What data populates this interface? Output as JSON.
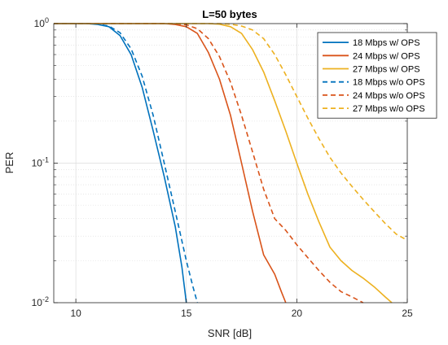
{
  "chart_data": {
    "type": "line",
    "title": "L=50 bytes",
    "xlabel": "SNR [dB]",
    "ylabel": "PER",
    "xlim": [
      9,
      25
    ],
    "ylim": [
      0.01,
      1
    ],
    "yscale": "log",
    "grid": true,
    "minor_grid": true,
    "legend_position": "top-right",
    "x_ticks": [
      10,
      15,
      20,
      25
    ],
    "x_tick_labels": [
      "10",
      "15",
      "20",
      "25"
    ],
    "y_ticks": [
      0.01,
      0.1,
      1
    ],
    "y_tick_labels": [
      {
        "base": "10",
        "exp": "-2"
      },
      {
        "base": "10",
        "exp": "-1"
      },
      {
        "base": "10",
        "exp": "0"
      }
    ],
    "series": [
      {
        "name": "18 Mbps w/ OPS",
        "color": "#0072BD",
        "dash": "solid",
        "points": [
          [
            9,
            1
          ],
          [
            10.5,
            1
          ],
          [
            11,
            0.985
          ],
          [
            11.5,
            0.95
          ],
          [
            12,
            0.82
          ],
          [
            12.5,
            0.6
          ],
          [
            13,
            0.35
          ],
          [
            13.5,
            0.17
          ],
          [
            14,
            0.08
          ],
          [
            14.5,
            0.035
          ],
          [
            14.8,
            0.018
          ],
          [
            15,
            0.01
          ]
        ]
      },
      {
        "name": "24 Mbps w/ OPS",
        "color": "#D95319",
        "dash": "solid",
        "points": [
          [
            9,
            1
          ],
          [
            14,
            1
          ],
          [
            14.5,
            0.985
          ],
          [
            15,
            0.95
          ],
          [
            15.5,
            0.85
          ],
          [
            16,
            0.62
          ],
          [
            16.5,
            0.4
          ],
          [
            17,
            0.22
          ],
          [
            17.5,
            0.1
          ],
          [
            18,
            0.045
          ],
          [
            18.5,
            0.022
          ],
          [
            19,
            0.016
          ],
          [
            19.3,
            0.012
          ],
          [
            19.5,
            0.01
          ]
        ]
      },
      {
        "name": "27 Mbps w/ OPS",
        "color": "#EDB120",
        "dash": "solid",
        "points": [
          [
            9,
            1
          ],
          [
            16,
            1
          ],
          [
            16.5,
            0.99
          ],
          [
            17,
            0.95
          ],
          [
            17.5,
            0.85
          ],
          [
            18,
            0.65
          ],
          [
            18.5,
            0.45
          ],
          [
            19,
            0.28
          ],
          [
            19.5,
            0.17
          ],
          [
            20,
            0.1
          ],
          [
            20.5,
            0.06
          ],
          [
            21,
            0.038
          ],
          [
            21.5,
            0.025
          ],
          [
            22,
            0.02
          ],
          [
            22.5,
            0.017
          ],
          [
            23,
            0.015
          ],
          [
            23.5,
            0.013
          ],
          [
            24,
            0.011
          ],
          [
            24.3,
            0.01
          ]
        ]
      },
      {
        "name": "18 Mbps w/o OPS",
        "color": "#0072BD",
        "dash": "dashed",
        "points": [
          [
            9,
            1
          ],
          [
            10.5,
            1
          ],
          [
            11,
            0.99
          ],
          [
            11.5,
            0.96
          ],
          [
            12,
            0.86
          ],
          [
            12.5,
            0.66
          ],
          [
            13,
            0.42
          ],
          [
            13.5,
            0.22
          ],
          [
            14,
            0.1
          ],
          [
            14.5,
            0.045
          ],
          [
            15,
            0.02
          ],
          [
            15.3,
            0.013
          ],
          [
            15.5,
            0.01
          ]
        ]
      },
      {
        "name": "24 Mbps w/o OPS",
        "color": "#D95319",
        "dash": "dashed",
        "points": [
          [
            9,
            1
          ],
          [
            14.5,
            1
          ],
          [
            15,
            0.98
          ],
          [
            15.5,
            0.92
          ],
          [
            16,
            0.78
          ],
          [
            16.5,
            0.58
          ],
          [
            17,
            0.38
          ],
          [
            17.5,
            0.22
          ],
          [
            18,
            0.12
          ],
          [
            18.5,
            0.065
          ],
          [
            19,
            0.04
          ],
          [
            19.5,
            0.033
          ],
          [
            20,
            0.026
          ],
          [
            20.5,
            0.021
          ],
          [
            21,
            0.017
          ],
          [
            21.5,
            0.014
          ],
          [
            22,
            0.012
          ],
          [
            22.5,
            0.011
          ],
          [
            23,
            0.01
          ]
        ]
      },
      {
        "name": "27 Mbps w/o OPS",
        "color": "#EDB120",
        "dash": "dashed",
        "points": [
          [
            9,
            1
          ],
          [
            16.5,
            1
          ],
          [
            17,
            0.99
          ],
          [
            17.5,
            0.96
          ],
          [
            18,
            0.9
          ],
          [
            18.5,
            0.78
          ],
          [
            19,
            0.6
          ],
          [
            19.5,
            0.43
          ],
          [
            20,
            0.3
          ],
          [
            20.5,
            0.21
          ],
          [
            21,
            0.15
          ],
          [
            21.5,
            0.11
          ],
          [
            22,
            0.085
          ],
          [
            22.5,
            0.068
          ],
          [
            23,
            0.055
          ],
          [
            23.5,
            0.045
          ],
          [
            24,
            0.037
          ],
          [
            24.5,
            0.031
          ],
          [
            25,
            0.028
          ]
        ]
      }
    ]
  }
}
